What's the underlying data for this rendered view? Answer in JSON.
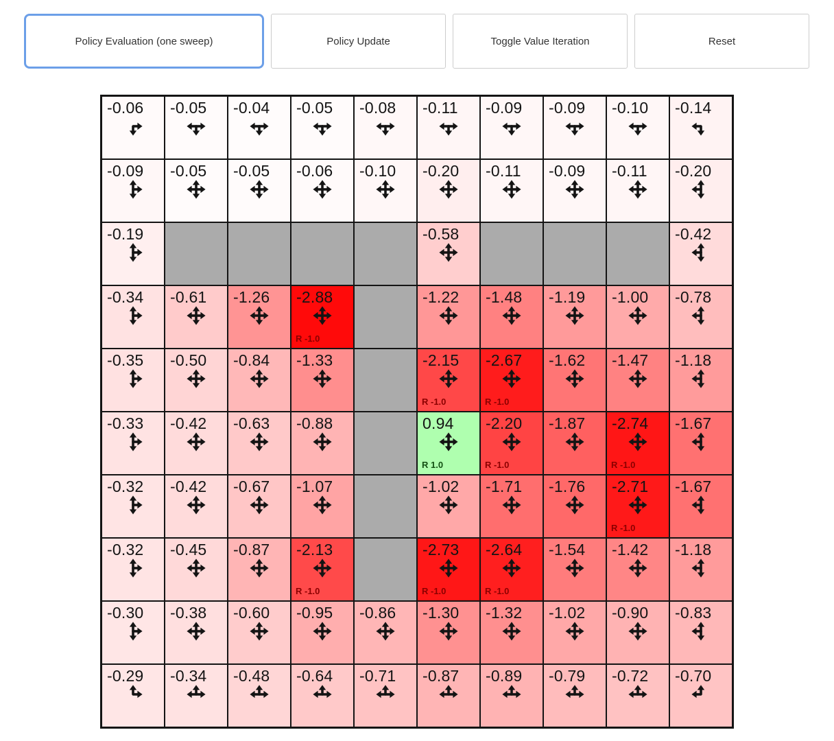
{
  "toolbar": {
    "buttons": [
      {
        "name": "policy-evaluation-button",
        "label": "Policy Evaluation (one sweep)",
        "active": true
      },
      {
        "name": "policy-update-button",
        "label": "Policy Update",
        "active": false
      },
      {
        "name": "toggle-value-iteration-button",
        "label": "Toggle Value Iteration",
        "active": false
      },
      {
        "name": "reset-button",
        "label": "Reset",
        "active": false
      }
    ]
  },
  "colors": {
    "active_button_border": "#6c9fe8",
    "button_border": "#cccccc",
    "button_text": "#333333",
    "wall": "#ababab",
    "grid_line": "#141414",
    "value_text": "#141414",
    "reward_negative_text": "#8b0000",
    "reward_positive_text": "#134f13"
  },
  "value_color_scale": {
    "max_abs": 3.0,
    "negative_tint": "red",
    "positive_tint": "green",
    "zero": "#ffffff"
  },
  "grid": {
    "rows": 10,
    "cols": 10,
    "cells": [
      [
        {
          "value": "-0.06",
          "arrows": [
            "down",
            "right"
          ],
          "reward": null
        },
        {
          "value": "-0.05",
          "arrows": [
            "left",
            "down",
            "right"
          ],
          "reward": null
        },
        {
          "value": "-0.04",
          "arrows": [
            "left",
            "down",
            "right"
          ],
          "reward": null
        },
        {
          "value": "-0.05",
          "arrows": [
            "left",
            "down",
            "right"
          ],
          "reward": null
        },
        {
          "value": "-0.08",
          "arrows": [
            "left",
            "down",
            "right"
          ],
          "reward": null
        },
        {
          "value": "-0.11",
          "arrows": [
            "left",
            "down",
            "right"
          ],
          "reward": null
        },
        {
          "value": "-0.09",
          "arrows": [
            "left",
            "down",
            "right"
          ],
          "reward": null
        },
        {
          "value": "-0.09",
          "arrows": [
            "left",
            "down",
            "right"
          ],
          "reward": null
        },
        {
          "value": "-0.10",
          "arrows": [
            "left",
            "down",
            "right"
          ],
          "reward": null
        },
        {
          "value": "-0.14",
          "arrows": [
            "left",
            "down"
          ],
          "reward": null
        }
      ],
      [
        {
          "value": "-0.09",
          "arrows": [
            "up",
            "down",
            "right"
          ],
          "reward": null
        },
        {
          "value": "-0.05",
          "arrows": [
            "up",
            "down",
            "left",
            "right"
          ],
          "reward": null
        },
        {
          "value": "-0.05",
          "arrows": [
            "up",
            "down",
            "left",
            "right"
          ],
          "reward": null
        },
        {
          "value": "-0.06",
          "arrows": [
            "up",
            "down",
            "left",
            "right"
          ],
          "reward": null
        },
        {
          "value": "-0.10",
          "arrows": [
            "up",
            "down",
            "left",
            "right"
          ],
          "reward": null
        },
        {
          "value": "-0.20",
          "arrows": [
            "up",
            "down",
            "left",
            "right"
          ],
          "reward": null
        },
        {
          "value": "-0.11",
          "arrows": [
            "up",
            "down",
            "left",
            "right"
          ],
          "reward": null
        },
        {
          "value": "-0.09",
          "arrows": [
            "up",
            "down",
            "left",
            "right"
          ],
          "reward": null
        },
        {
          "value": "-0.11",
          "arrows": [
            "up",
            "down",
            "left",
            "right"
          ],
          "reward": null
        },
        {
          "value": "-0.20",
          "arrows": [
            "up",
            "down",
            "left"
          ],
          "reward": null
        }
      ],
      [
        {
          "value": "-0.19",
          "arrows": [
            "up",
            "down",
            "right"
          ],
          "reward": null
        },
        {
          "wall": true
        },
        {
          "wall": true
        },
        {
          "wall": true
        },
        {
          "wall": true
        },
        {
          "value": "-0.58",
          "arrows": [
            "up",
            "down",
            "left",
            "right"
          ],
          "reward": null
        },
        {
          "wall": true
        },
        {
          "wall": true
        },
        {
          "wall": true
        },
        {
          "value": "-0.42",
          "arrows": [
            "up",
            "down",
            "left"
          ],
          "reward": null
        }
      ],
      [
        {
          "value": "-0.34",
          "arrows": [
            "up",
            "down",
            "right"
          ],
          "reward": null
        },
        {
          "value": "-0.61",
          "arrows": [
            "up",
            "down",
            "left",
            "right"
          ],
          "reward": null
        },
        {
          "value": "-1.26",
          "arrows": [
            "up",
            "down",
            "left",
            "right"
          ],
          "reward": null
        },
        {
          "value": "-2.88",
          "arrows": [
            "up",
            "down",
            "left",
            "right"
          ],
          "reward": "R -1.0"
        },
        {
          "wall": true
        },
        {
          "value": "-1.22",
          "arrows": [
            "up",
            "down",
            "left",
            "right"
          ],
          "reward": null
        },
        {
          "value": "-1.48",
          "arrows": [
            "up",
            "down",
            "left",
            "right"
          ],
          "reward": null
        },
        {
          "value": "-1.19",
          "arrows": [
            "up",
            "down",
            "left",
            "right"
          ],
          "reward": null
        },
        {
          "value": "-1.00",
          "arrows": [
            "up",
            "down",
            "left",
            "right"
          ],
          "reward": null
        },
        {
          "value": "-0.78",
          "arrows": [
            "up",
            "down",
            "left"
          ],
          "reward": null
        }
      ],
      [
        {
          "value": "-0.35",
          "arrows": [
            "up",
            "down",
            "right"
          ],
          "reward": null
        },
        {
          "value": "-0.50",
          "arrows": [
            "up",
            "down",
            "left",
            "right"
          ],
          "reward": null
        },
        {
          "value": "-0.84",
          "arrows": [
            "up",
            "down",
            "left",
            "right"
          ],
          "reward": null
        },
        {
          "value": "-1.33",
          "arrows": [
            "up",
            "down",
            "left",
            "right"
          ],
          "reward": null
        },
        {
          "wall": true
        },
        {
          "value": "-2.15",
          "arrows": [
            "up",
            "down",
            "left",
            "right"
          ],
          "reward": "R -1.0"
        },
        {
          "value": "-2.67",
          "arrows": [
            "up",
            "down",
            "left",
            "right"
          ],
          "reward": "R -1.0"
        },
        {
          "value": "-1.62",
          "arrows": [
            "up",
            "down",
            "left",
            "right"
          ],
          "reward": null
        },
        {
          "value": "-1.47",
          "arrows": [
            "up",
            "down",
            "left",
            "right"
          ],
          "reward": null
        },
        {
          "value": "-1.18",
          "arrows": [
            "up",
            "down",
            "left"
          ],
          "reward": null
        }
      ],
      [
        {
          "value": "-0.33",
          "arrows": [
            "up",
            "down",
            "right"
          ],
          "reward": null
        },
        {
          "value": "-0.42",
          "arrows": [
            "up",
            "down",
            "left",
            "right"
          ],
          "reward": null
        },
        {
          "value": "-0.63",
          "arrows": [
            "up",
            "down",
            "left",
            "right"
          ],
          "reward": null
        },
        {
          "value": "-0.88",
          "arrows": [
            "up",
            "down",
            "left",
            "right"
          ],
          "reward": null
        },
        {
          "wall": true
        },
        {
          "value": "0.94",
          "arrows": [
            "up",
            "down",
            "left",
            "right"
          ],
          "reward": "R 1.0"
        },
        {
          "value": "-2.20",
          "arrows": [
            "up",
            "down",
            "left",
            "right"
          ],
          "reward": "R -1.0"
        },
        {
          "value": "-1.87",
          "arrows": [
            "up",
            "down",
            "left",
            "right"
          ],
          "reward": null
        },
        {
          "value": "-2.74",
          "arrows": [
            "up",
            "down",
            "left",
            "right"
          ],
          "reward": "R -1.0"
        },
        {
          "value": "-1.67",
          "arrows": [
            "up",
            "down",
            "left"
          ],
          "reward": null
        }
      ],
      [
        {
          "value": "-0.32",
          "arrows": [
            "up",
            "down",
            "right"
          ],
          "reward": null
        },
        {
          "value": "-0.42",
          "arrows": [
            "up",
            "down",
            "left",
            "right"
          ],
          "reward": null
        },
        {
          "value": "-0.67",
          "arrows": [
            "up",
            "down",
            "left",
            "right"
          ],
          "reward": null
        },
        {
          "value": "-1.07",
          "arrows": [
            "up",
            "down",
            "left",
            "right"
          ],
          "reward": null
        },
        {
          "wall": true
        },
        {
          "value": "-1.02",
          "arrows": [
            "up",
            "down",
            "left",
            "right"
          ],
          "reward": null
        },
        {
          "value": "-1.71",
          "arrows": [
            "up",
            "down",
            "left",
            "right"
          ],
          "reward": null
        },
        {
          "value": "-1.76",
          "arrows": [
            "up",
            "down",
            "left",
            "right"
          ],
          "reward": null
        },
        {
          "value": "-2.71",
          "arrows": [
            "up",
            "down",
            "left",
            "right"
          ],
          "reward": "R -1.0"
        },
        {
          "value": "-1.67",
          "arrows": [
            "up",
            "down",
            "left"
          ],
          "reward": null
        }
      ],
      [
        {
          "value": "-0.32",
          "arrows": [
            "up",
            "down",
            "right"
          ],
          "reward": null
        },
        {
          "value": "-0.45",
          "arrows": [
            "up",
            "down",
            "left",
            "right"
          ],
          "reward": null
        },
        {
          "value": "-0.87",
          "arrows": [
            "up",
            "down",
            "left",
            "right"
          ],
          "reward": null
        },
        {
          "value": "-2.13",
          "arrows": [
            "up",
            "down",
            "left",
            "right"
          ],
          "reward": "R -1.0"
        },
        {
          "wall": true
        },
        {
          "value": "-2.73",
          "arrows": [
            "up",
            "down",
            "left",
            "right"
          ],
          "reward": "R -1.0"
        },
        {
          "value": "-2.64",
          "arrows": [
            "up",
            "down",
            "left",
            "right"
          ],
          "reward": "R -1.0"
        },
        {
          "value": "-1.54",
          "arrows": [
            "up",
            "down",
            "left",
            "right"
          ],
          "reward": null
        },
        {
          "value": "-1.42",
          "arrows": [
            "up",
            "down",
            "left",
            "right"
          ],
          "reward": null
        },
        {
          "value": "-1.18",
          "arrows": [
            "up",
            "down",
            "left"
          ],
          "reward": null
        }
      ],
      [
        {
          "value": "-0.30",
          "arrows": [
            "up",
            "down",
            "right"
          ],
          "reward": null
        },
        {
          "value": "-0.38",
          "arrows": [
            "up",
            "down",
            "left",
            "right"
          ],
          "reward": null
        },
        {
          "value": "-0.60",
          "arrows": [
            "up",
            "down",
            "left",
            "right"
          ],
          "reward": null
        },
        {
          "value": "-0.95",
          "arrows": [
            "up",
            "down",
            "left",
            "right"
          ],
          "reward": null
        },
        {
          "value": "-0.86",
          "arrows": [
            "up",
            "down",
            "left",
            "right"
          ],
          "reward": null
        },
        {
          "value": "-1.30",
          "arrows": [
            "up",
            "down",
            "left",
            "right"
          ],
          "reward": null
        },
        {
          "value": "-1.32",
          "arrows": [
            "up",
            "down",
            "left",
            "right"
          ],
          "reward": null
        },
        {
          "value": "-1.02",
          "arrows": [
            "up",
            "down",
            "left",
            "right"
          ],
          "reward": null
        },
        {
          "value": "-0.90",
          "arrows": [
            "up",
            "down",
            "left",
            "right"
          ],
          "reward": null
        },
        {
          "value": "-0.83",
          "arrows": [
            "up",
            "down",
            "left"
          ],
          "reward": null
        }
      ],
      [
        {
          "value": "-0.29",
          "arrows": [
            "up",
            "right"
          ],
          "reward": null
        },
        {
          "value": "-0.34",
          "arrows": [
            "left",
            "up",
            "right"
          ],
          "reward": null
        },
        {
          "value": "-0.48",
          "arrows": [
            "left",
            "up",
            "right"
          ],
          "reward": null
        },
        {
          "value": "-0.64",
          "arrows": [
            "left",
            "up",
            "right"
          ],
          "reward": null
        },
        {
          "value": "-0.71",
          "arrows": [
            "left",
            "up",
            "right"
          ],
          "reward": null
        },
        {
          "value": "-0.87",
          "arrows": [
            "left",
            "up",
            "right"
          ],
          "reward": null
        },
        {
          "value": "-0.89",
          "arrows": [
            "left",
            "up",
            "right"
          ],
          "reward": null
        },
        {
          "value": "-0.79",
          "arrows": [
            "left",
            "up",
            "right"
          ],
          "reward": null
        },
        {
          "value": "-0.72",
          "arrows": [
            "left",
            "up",
            "right"
          ],
          "reward": null
        },
        {
          "value": "-0.70",
          "arrows": [
            "up",
            "left"
          ],
          "reward": null
        }
      ]
    ]
  }
}
